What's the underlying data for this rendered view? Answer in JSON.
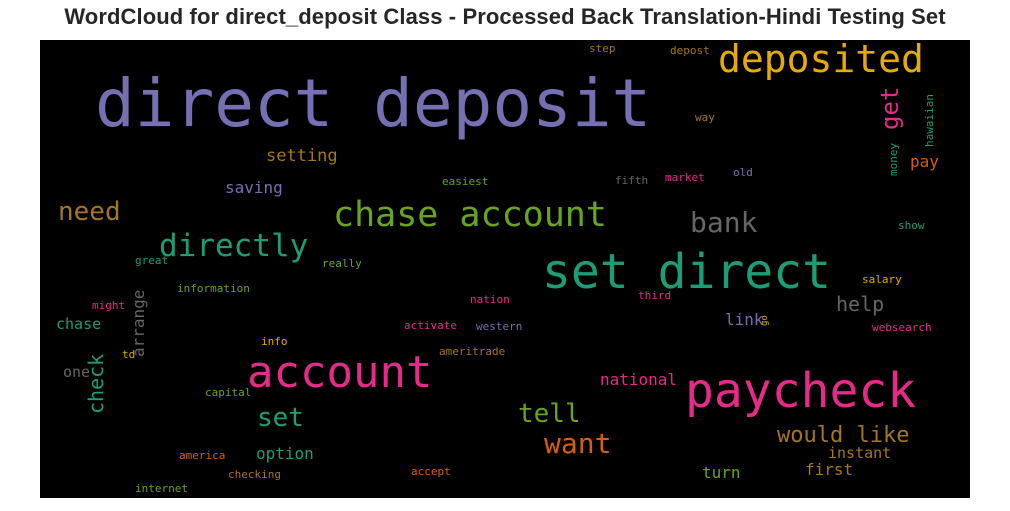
{
  "chart_data": {
    "type": "wordcloud",
    "title": "WordCloud for direct_deposit Class - Processed Back Translation-Hindi Testing Set",
    "background": "#000000",
    "colormap": "Dark2",
    "words": [
      {
        "text": "direct deposit",
        "color": "#7570b3"
      },
      {
        "text": "deposited",
        "color": "#e6ab02"
      },
      {
        "text": "set direct",
        "color": "#1b9e77"
      },
      {
        "text": "paycheck",
        "color": "#e7298a"
      },
      {
        "text": "account",
        "color": "#e7298a"
      },
      {
        "text": "chase account",
        "color": "#66a61e"
      },
      {
        "text": "directly",
        "color": "#1b9e77"
      },
      {
        "text": "bank",
        "color": "#666666"
      },
      {
        "text": "get",
        "color": "#e7298a"
      },
      {
        "text": "need",
        "color": "#a6761d"
      },
      {
        "text": "want",
        "color": "#d95f02"
      },
      {
        "text": "tell",
        "color": "#66a61e"
      },
      {
        "text": "set",
        "color": "#1b9e77"
      },
      {
        "text": "check",
        "color": "#1b9e77"
      },
      {
        "text": "would like",
        "color": "#a6761d"
      },
      {
        "text": "help",
        "color": "#666666"
      },
      {
        "text": "arrange",
        "color": "#666666"
      },
      {
        "text": "setting",
        "color": "#a6761d"
      },
      {
        "text": "saving",
        "color": "#7570b3"
      },
      {
        "text": "pay",
        "color": "#d95f02"
      },
      {
        "text": "chase",
        "color": "#1b9e77"
      },
      {
        "text": "link",
        "color": "#7570b3"
      },
      {
        "text": "national",
        "color": "#e7298a"
      },
      {
        "text": "option",
        "color": "#1b9e77"
      },
      {
        "text": "turn",
        "color": "#66a61e"
      },
      {
        "text": "first",
        "color": "#a6761d"
      },
      {
        "text": "instant",
        "color": "#a6761d"
      },
      {
        "text": "one",
        "color": "#666666"
      },
      {
        "text": "hawaiian",
        "color": "#1b9e77"
      },
      {
        "text": "money",
        "color": "#1b9e77"
      },
      {
        "text": "step",
        "color": "#a6761d"
      },
      {
        "text": "depost",
        "color": "#a6761d"
      },
      {
        "text": "way",
        "color": "#a6761d"
      },
      {
        "text": "easiest",
        "color": "#66a61e"
      },
      {
        "text": "fifth",
        "color": "#666666"
      },
      {
        "text": "market",
        "color": "#e7298a"
      },
      {
        "text": "old",
        "color": "#7570b3"
      },
      {
        "text": "show",
        "color": "#1b9e77"
      },
      {
        "text": "great",
        "color": "#1b9e77"
      },
      {
        "text": "really",
        "color": "#66a61e"
      },
      {
        "text": "salary",
        "color": "#e6ab02"
      },
      {
        "text": "information",
        "color": "#66a61e"
      },
      {
        "text": "might",
        "color": "#e7298a"
      },
      {
        "text": "nation",
        "color": "#e7298a"
      },
      {
        "text": "third",
        "color": "#e7298a"
      },
      {
        "text": "go",
        "color": "#e6ab02"
      },
      {
        "text": "activate",
        "color": "#e7298a"
      },
      {
        "text": "western",
        "color": "#7570b3"
      },
      {
        "text": "websearch",
        "color": "#e7298a"
      },
      {
        "text": "info",
        "color": "#e6ab02"
      },
      {
        "text": "td",
        "color": "#e6ab02"
      },
      {
        "text": "ameritrade",
        "color": "#a6761d"
      },
      {
        "text": "capital",
        "color": "#66a61e"
      },
      {
        "text": "america",
        "color": "#d95f02"
      },
      {
        "text": "checking",
        "color": "#a6761d"
      },
      {
        "text": "accept",
        "color": "#d95f02"
      },
      {
        "text": "internet",
        "color": "#66a61e"
      }
    ]
  }
}
